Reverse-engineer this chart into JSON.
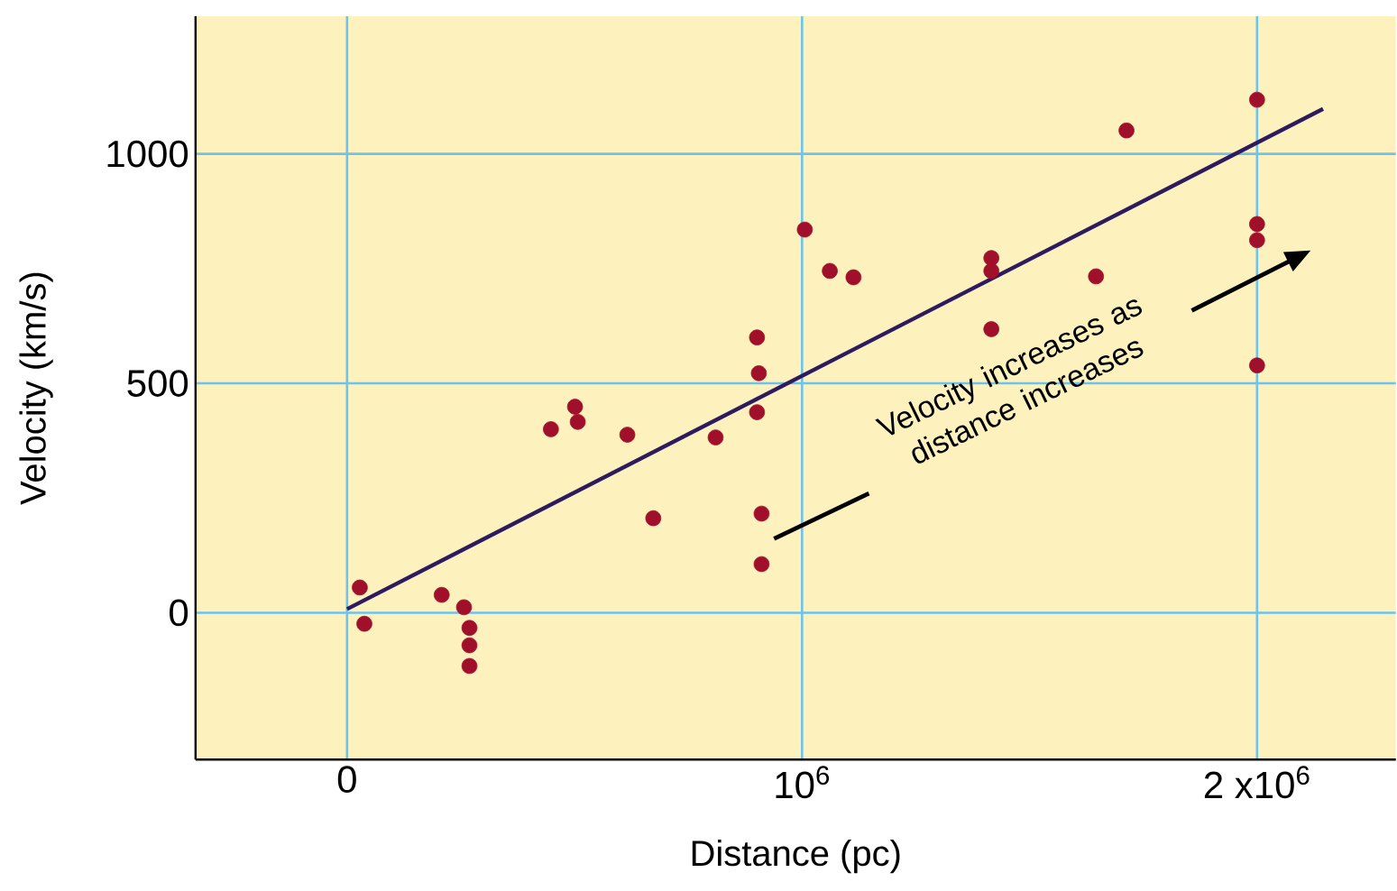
{
  "chart_data": {
    "type": "scatter",
    "xlabel": "Distance (pc)",
    "ylabel": "Velocity (km/s)",
    "xlim": [
      -333000,
      2305000
    ],
    "ylim": [
      -320,
      1300
    ],
    "xticks": [
      0,
      {
        "value": 1000000,
        "label": "10$^{6}$"
      },
      {
        "value": 2000000,
        "label": "2 x10$^{6}$"
      }
    ],
    "yticks": [
      0,
      500,
      1000
    ],
    "grid": true,
    "annotations": [
      "Velocity increases as distance increases"
    ],
    "series": [
      {
        "color": "#a0102a",
        "marker": "circle",
        "x": [
          28000,
          38000,
          208000,
          257000,
          269000,
          269000,
          269000,
          448000,
          501000,
          507000,
          616000,
          673000,
          810000,
          901000,
          905000,
          901000,
          911000,
          911000,
          1006000,
          1061000,
          1113000,
          1416000,
          1416000,
          1416000,
          1646000,
          1713000,
          2000000,
          2000000,
          2000000,
          2000000
        ],
        "values": [
          55,
          -24,
          39,
          12,
          -33,
          -71,
          -116,
          400,
          449,
          416,
          388,
          206,
          382,
          600,
          522,
          437,
          216,
          106,
          835,
          745,
          731,
          773,
          745,
          618,
          733,
          1051,
          1118,
          847,
          812,
          539
        ]
      },
      {
        "type": "line",
        "color": "#2e1a5e",
        "marker": "none",
        "x": [
          0,
          2145000
        ],
        "values": [
          8,
          1098
        ]
      }
    ]
  }
}
